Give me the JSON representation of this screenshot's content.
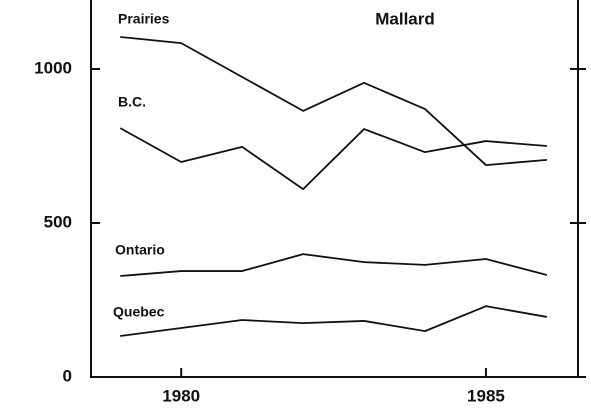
{
  "chart_data": {
    "type": "line",
    "title": "Mallard",
    "x": [
      1979,
      1980,
      1981,
      1982,
      1983,
      1984,
      1985,
      1986
    ],
    "series": [
      {
        "name": "Prairies",
        "color": "#111111",
        "values": [
          1104,
          1084,
          974,
          864,
          955,
          870,
          688,
          705
        ]
      },
      {
        "name": "B.C.",
        "color": "#111111",
        "values": [
          808,
          698,
          747,
          610,
          805,
          730,
          766,
          750
        ]
      },
      {
        "name": "Ontario",
        "color": "#111111",
        "values": [
          328,
          344,
          344,
          399,
          373,
          364,
          383,
          331
        ]
      },
      {
        "name": "Quebec",
        "color": "#111111",
        "values": [
          133,
          159,
          185,
          175,
          182,
          149,
          230,
          195
        ]
      }
    ],
    "xlim": [
      1978.52,
      1986.51
    ],
    "xticks": [
      1980,
      1985
    ],
    "ylim": [
      0,
      1224
    ],
    "yticks": [
      0,
      500,
      1000
    ],
    "grid": false
  }
}
